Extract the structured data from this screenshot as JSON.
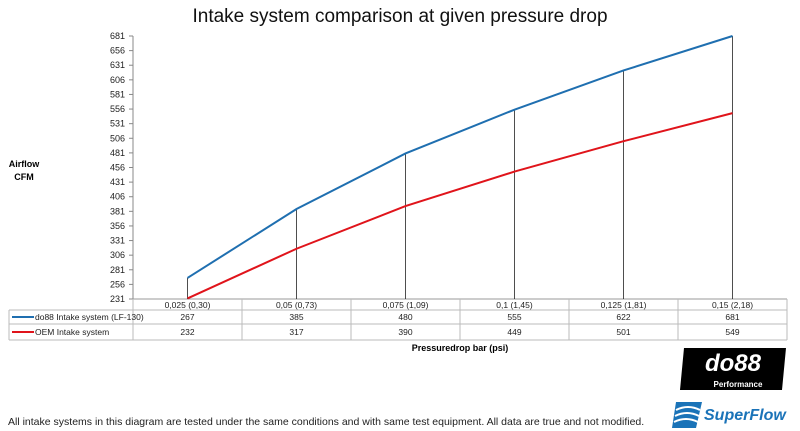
{
  "chart_data": {
    "type": "line",
    "title": "Intake system comparison at given pressure drop",
    "ylabel": "Airflow CFM",
    "xlabel": "Pressuredrop bar (psi)",
    "categories": [
      "0,025 (0,30)",
      "0,05 (0,73)",
      "0,075 (1,09)",
      "0,1 (1,45)",
      "0,125 (1,81)",
      "0,15 (2,18)"
    ],
    "ylim": [
      231,
      681
    ],
    "yticks": [
      231,
      256,
      281,
      306,
      331,
      356,
      381,
      406,
      431,
      456,
      481,
      506,
      531,
      556,
      581,
      606,
      631,
      656,
      681
    ],
    "grid": false,
    "legend": "table",
    "series": [
      {
        "name": "do88 Intake system (LF-130)",
        "color": "#1f6fb0",
        "values": [
          267,
          385,
          480,
          555,
          622,
          681
        ]
      },
      {
        "name": "OEM Intake system",
        "color": "#e0141b",
        "values": [
          232,
          317,
          390,
          449,
          501,
          549
        ]
      }
    ]
  },
  "footer": {
    "note": "All intake systems in this diagram are tested under the same conditions and with same test equipment. All data are true and not modified."
  },
  "logos": {
    "do88": "do88",
    "do88_sub": "Performance",
    "superflow": "SuperFlow"
  }
}
